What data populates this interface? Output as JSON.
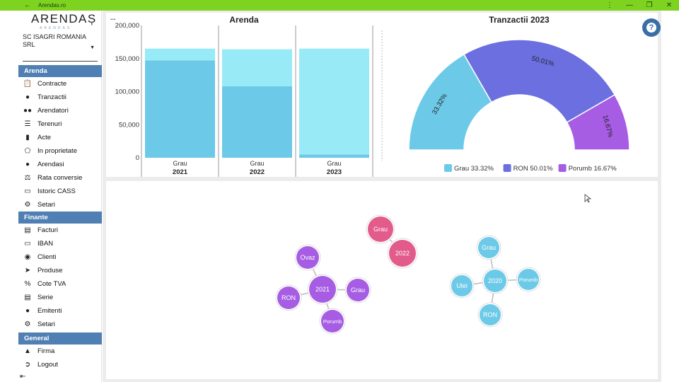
{
  "window": {
    "title": "Arendas.ro",
    "back_icon": "back-arrow-icon",
    "menu_icon": "more-vert-icon",
    "minimize_icon": "minimize-icon",
    "maximize_icon": "maximize-icon",
    "close_icon": "close-icon"
  },
  "sidebar": {
    "logo": "ARENDAȘ",
    "logo_sub": "ARENDAS",
    "company": "SC ISAGRI ROMANIA SRL",
    "sections": [
      {
        "title": "Arenda",
        "items": [
          {
            "label": "Contracte",
            "icon": "clipboard-icon"
          },
          {
            "label": "Tranzactii",
            "icon": "money-bag-icon"
          },
          {
            "label": "Arendatori",
            "icon": "users-icon"
          },
          {
            "label": "Terenuri",
            "icon": "layers-icon"
          },
          {
            "label": "Acte",
            "icon": "file-icon"
          },
          {
            "label": "In proprietate",
            "icon": "polygon-icon"
          },
          {
            "label": "Arendasi",
            "icon": "user-icon"
          },
          {
            "label": "Rata conversie",
            "icon": "scale-icon"
          },
          {
            "label": "Istoric CASS",
            "icon": "card-icon"
          },
          {
            "label": "Setari",
            "icon": "gear-icon"
          }
        ]
      },
      {
        "title": "Finante",
        "items": [
          {
            "label": "Facturi",
            "icon": "invoice-icon"
          },
          {
            "label": "IBAN",
            "icon": "credit-card-icon"
          },
          {
            "label": "Clienti",
            "icon": "handshake-icon"
          },
          {
            "label": "Produse",
            "icon": "cart-icon"
          },
          {
            "label": "Cote TVA",
            "icon": "percent-icon"
          },
          {
            "label": "Serie",
            "icon": "document-icon"
          },
          {
            "label": "Emitenti",
            "icon": "user-file-icon"
          },
          {
            "label": "Setari",
            "icon": "gear-icon"
          }
        ]
      },
      {
        "title": "General",
        "items": [
          {
            "label": "Firma",
            "icon": "bank-icon"
          },
          {
            "label": "Logout",
            "icon": "logout-icon"
          }
        ]
      }
    ],
    "collapse_icon": "collapse-sidebar-icon"
  },
  "colors": {
    "titlebar": "#7ed321",
    "section_header": "#4f7fb3",
    "grau": "#6ccae8",
    "grau_light": "#97eaf6",
    "ron": "#6b6fdf",
    "porumb": "#a65de3",
    "pink": "#e25b8a",
    "help": "#3a6ea5"
  },
  "chart_data": [
    {
      "type": "bar",
      "title": "Arenda",
      "categories": [
        "2021",
        "2022",
        "2023"
      ],
      "category_sublabels": [
        "Grau",
        "Grau",
        "Grau"
      ],
      "ylim": [
        0,
        200000
      ],
      "yticks": [
        "200,000",
        "150,000",
        "100,000",
        "50,000",
        "0"
      ],
      "series": [
        {
          "values": [
            147000,
            108000,
            5000
          ],
          "color": "#6ccae8"
        },
        {
          "values": [
            18000,
            56000,
            160000
          ],
          "color": "#97eaf6"
        }
      ],
      "menu_label": "..."
    },
    {
      "type": "pie",
      "variant": "half-donut",
      "title": "Tranzactii 2023",
      "slices": [
        {
          "label": "Grau",
          "value": 33.32,
          "text": "33.32%",
          "legend": "Grau 33.32%",
          "color": "#6ccae8"
        },
        {
          "label": "RON",
          "value": 50.01,
          "text": "50.01%",
          "legend": "RON 50.01%",
          "color": "#6b6fdf"
        },
        {
          "label": "Porumb",
          "value": 16.67,
          "text": "16.67%",
          "legend": "Porumb 16.67%",
          "color": "#a65de3"
        }
      ],
      "legend_position": "bottom"
    },
    {
      "type": "network",
      "clusters": [
        {
          "center": "2021",
          "color": "#a65de3",
          "nodes": [
            "Ovaz",
            "RON",
            "Grau",
            "Porumb"
          ]
        },
        {
          "center": "2022",
          "color": "#e25b8a",
          "nodes": [
            "Grau"
          ]
        },
        {
          "center": "2020",
          "color": "#6ccae8",
          "nodes": [
            "Grau",
            "Ulei",
            "Porumb",
            "RON"
          ]
        }
      ]
    }
  ]
}
